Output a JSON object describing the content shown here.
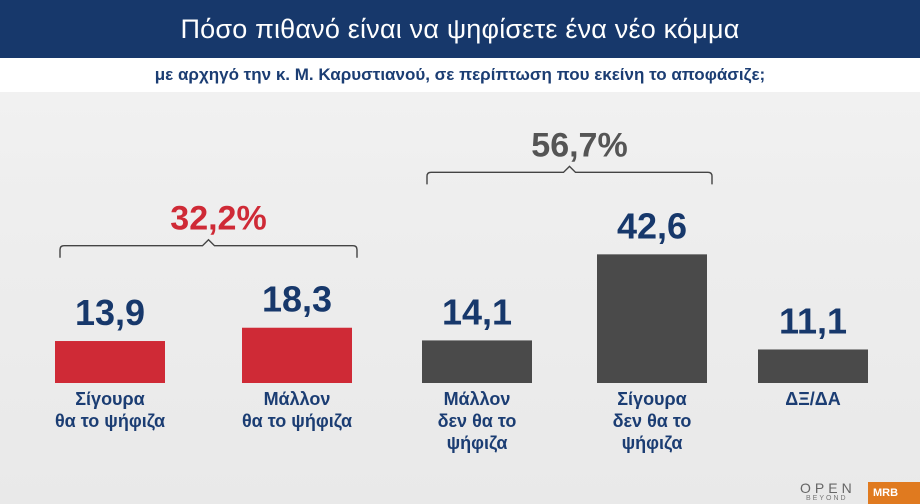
{
  "header": {
    "title": "Πόσο πιθανό είναι να ψηφίσετε ένα νέο κόμμα",
    "subtitle": "με αρχηγό την κ. Μ. Καρυστιανού, σε περίπτωση που εκείνη το αποφάσιζε;"
  },
  "chart_data": {
    "type": "bar",
    "title": "Πόσο πιθανό είναι να ψηφίσετε ένα νέο κόμμα",
    "subtitle": "με αρχηγό την κ. Μ. Καρυστιανού, σε περίπτωση που εκείνη το αποφάσιζε;",
    "categories": [
      [
        "Σίγουρα",
        "θα το ψήφιζα"
      ],
      [
        "Μάλλον",
        "θα το ψήφιζα"
      ],
      [
        "Μάλλον",
        "δεν θα το",
        "ψήφιζα"
      ],
      [
        "Σίγουρα",
        "δεν θα το",
        "ψήφιζα"
      ],
      [
        "ΔΞ/ΔΑ"
      ]
    ],
    "values": [
      13.9,
      18.3,
      14.1,
      42.6,
      11.1
    ],
    "value_labels": [
      "13,9",
      "18,3",
      "14,1",
      "42,6",
      "11,1"
    ],
    "colors": [
      "#cf2a36",
      "#cf2a36",
      "#4a4a4a",
      "#4a4a4a",
      "#4a4a4a"
    ],
    "category_label_colors": [
      "#1b3d73",
      "#1b3d73",
      "#1b3d73",
      "#1b3d73",
      "#1b3d73"
    ],
    "groups": [
      {
        "label": "32,2%",
        "members": [
          0,
          1
        ],
        "color": "#cf2a36"
      },
      {
        "label": "56,7%",
        "members": [
          2,
          3
        ],
        "color": "#555555"
      }
    ],
    "grid": false,
    "legend": "none"
  },
  "branding": {
    "logo_text": "OPEN",
    "logo_subtext": "BEYOND",
    "pollster_text": "MRB"
  }
}
